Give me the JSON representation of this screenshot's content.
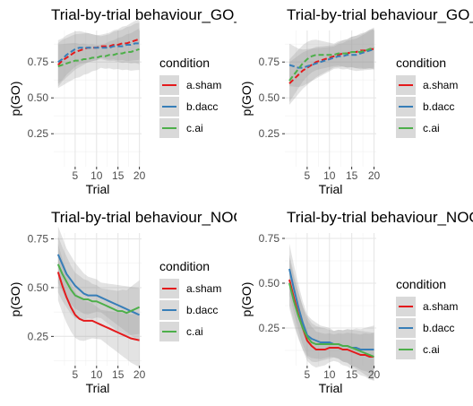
{
  "chart_data": [
    {
      "type": "line",
      "title": "Trial-by-trial behaviour_GO_ChosenHigh",
      "xlabel": "Trial",
      "ylabel": "p(GO)",
      "xlim": [
        0,
        20.5
      ],
      "ylim": [
        0.02,
        0.97
      ],
      "xticks": [
        5,
        10,
        15,
        20
      ],
      "yticks": [
        0.25,
        0.5,
        0.75
      ],
      "grid": true,
      "legend": "right",
      "legend_title": "condition",
      "series": [
        {
          "name": "a.sham",
          "color": "#e41a1c",
          "x": [
            1,
            2,
            3,
            4,
            5,
            6,
            7,
            8,
            9,
            10,
            11,
            12,
            13,
            14,
            15,
            16,
            17,
            18,
            19,
            20
          ],
          "y": [
            0.73,
            0.76,
            0.78,
            0.8,
            0.82,
            0.83,
            0.84,
            0.85,
            0.85,
            0.85,
            0.86,
            0.86,
            0.86,
            0.87,
            0.87,
            0.88,
            0.88,
            0.89,
            0.9,
            0.91
          ]
        },
        {
          "name": "b.dacc",
          "color": "#377eb8",
          "x": [
            1,
            2,
            3,
            4,
            5,
            6,
            7,
            8,
            9,
            10,
            11,
            12,
            13,
            14,
            15,
            16,
            17,
            18,
            19,
            20
          ],
          "y": [
            0.75,
            0.77,
            0.8,
            0.82,
            0.84,
            0.85,
            0.85,
            0.85,
            0.85,
            0.85,
            0.85,
            0.85,
            0.85,
            0.86,
            0.86,
            0.86,
            0.87,
            0.87,
            0.88,
            0.88
          ]
        },
        {
          "name": "c.ai",
          "color": "#4daf4a",
          "x": [
            1,
            2,
            3,
            4,
            5,
            6,
            7,
            8,
            9,
            10,
            11,
            12,
            13,
            14,
            15,
            16,
            17,
            18,
            19,
            20
          ],
          "y": [
            0.72,
            0.73,
            0.74,
            0.75,
            0.76,
            0.76,
            0.77,
            0.77,
            0.78,
            0.78,
            0.79,
            0.79,
            0.8,
            0.8,
            0.81,
            0.81,
            0.82,
            0.82,
            0.83,
            0.84
          ]
        }
      ]
    },
    {
      "type": "line",
      "title": "Trial-by-trial behaviour_GO_ChosenLow",
      "xlabel": "Trial",
      "ylabel": "p(GO)",
      "xlim": [
        0,
        20.5
      ],
      "ylim": [
        0.02,
        0.97
      ],
      "xticks": [
        5,
        10,
        15,
        20
      ],
      "yticks": [
        0.25,
        0.5,
        0.75
      ],
      "grid": true,
      "legend": "right",
      "legend_title": "condition",
      "series": [
        {
          "name": "a.sham",
          "color": "#e41a1c",
          "x": [
            1,
            2,
            3,
            4,
            5,
            6,
            7,
            8,
            9,
            10,
            11,
            12,
            13,
            14,
            15,
            16,
            17,
            18,
            19,
            20
          ],
          "y": [
            0.6,
            0.63,
            0.66,
            0.69,
            0.71,
            0.73,
            0.75,
            0.76,
            0.77,
            0.78,
            0.79,
            0.8,
            0.81,
            0.81,
            0.82,
            0.82,
            0.83,
            0.83,
            0.84,
            0.84
          ]
        },
        {
          "name": "b.dacc",
          "color": "#377eb8",
          "x": [
            1,
            2,
            3,
            4,
            5,
            6,
            7,
            8,
            9,
            10,
            11,
            12,
            13,
            14,
            15,
            16,
            17,
            18,
            19,
            20
          ],
          "y": [
            0.73,
            0.72,
            0.71,
            0.71,
            0.72,
            0.73,
            0.74,
            0.75,
            0.76,
            0.77,
            0.78,
            0.79,
            0.79,
            0.8,
            0.8,
            0.8,
            0.81,
            0.82,
            0.83,
            0.84
          ]
        },
        {
          "name": "c.ai",
          "color": "#4daf4a",
          "x": [
            1,
            2,
            3,
            4,
            5,
            6,
            7,
            8,
            9,
            10,
            11,
            12,
            13,
            14,
            15,
            16,
            17,
            18,
            19,
            20
          ],
          "y": [
            0.62,
            0.66,
            0.7,
            0.74,
            0.77,
            0.79,
            0.8,
            0.8,
            0.8,
            0.8,
            0.8,
            0.81,
            0.81,
            0.81,
            0.82,
            0.82,
            0.82,
            0.83,
            0.84,
            0.85
          ]
        }
      ]
    },
    {
      "type": "line",
      "title": "Trial-by-trial behaviour_NOGO_ChosenHigh",
      "xlabel": "Trial",
      "ylabel": "p(GO)",
      "xlim": [
        0,
        20.5
      ],
      "ylim": [
        0.1,
        0.78
      ],
      "xticks": [
        5,
        10,
        15,
        20
      ],
      "yticks": [
        0.25,
        0.5,
        0.75
      ],
      "grid": true,
      "legend": "right",
      "legend_title": "condition",
      "series": [
        {
          "name": "a.sham",
          "color": "#e41a1c",
          "x": [
            1,
            2,
            3,
            4,
            5,
            6,
            7,
            8,
            9,
            10,
            11,
            12,
            13,
            14,
            15,
            16,
            17,
            18,
            19,
            20
          ],
          "y": [
            0.58,
            0.51,
            0.45,
            0.4,
            0.36,
            0.34,
            0.33,
            0.33,
            0.33,
            0.32,
            0.31,
            0.3,
            0.29,
            0.28,
            0.27,
            0.26,
            0.25,
            0.24,
            0.235,
            0.23
          ]
        },
        {
          "name": "b.dacc",
          "color": "#377eb8",
          "x": [
            1,
            2,
            3,
            4,
            5,
            6,
            7,
            8,
            9,
            10,
            11,
            12,
            13,
            14,
            15,
            16,
            17,
            18,
            19,
            20
          ],
          "y": [
            0.67,
            0.62,
            0.57,
            0.54,
            0.51,
            0.49,
            0.47,
            0.46,
            0.46,
            0.46,
            0.45,
            0.44,
            0.43,
            0.42,
            0.41,
            0.4,
            0.39,
            0.38,
            0.37,
            0.36
          ]
        },
        {
          "name": "c.ai",
          "color": "#4daf4a",
          "x": [
            1,
            2,
            3,
            4,
            5,
            6,
            7,
            8,
            9,
            10,
            11,
            12,
            13,
            14,
            15,
            16,
            17,
            18,
            19,
            20
          ],
          "y": [
            0.62,
            0.57,
            0.53,
            0.49,
            0.46,
            0.45,
            0.44,
            0.44,
            0.43,
            0.43,
            0.42,
            0.41,
            0.4,
            0.39,
            0.38,
            0.38,
            0.37,
            0.38,
            0.39,
            0.4
          ]
        }
      ]
    },
    {
      "type": "line",
      "title": "Trial-by-trial behaviour_NOGO_ChosenLow",
      "xlabel": "Trial",
      "ylabel": "p(GO)",
      "xlim": [
        0,
        20.5
      ],
      "ylim": [
        0.04,
        0.78
      ],
      "xticks": [
        5,
        10,
        15,
        20
      ],
      "yticks": [
        0.25,
        0.5,
        0.75
      ],
      "grid": true,
      "legend": "right",
      "legend_title": "condition",
      "series": [
        {
          "name": "a.sham",
          "color": "#e41a1c",
          "x": [
            1,
            2,
            3,
            4,
            5,
            6,
            7,
            8,
            9,
            10,
            11,
            12,
            13,
            14,
            15,
            16,
            17,
            18,
            19,
            20
          ],
          "y": [
            0.52,
            0.42,
            0.33,
            0.25,
            0.18,
            0.15,
            0.13,
            0.13,
            0.13,
            0.14,
            0.14,
            0.14,
            0.13,
            0.13,
            0.12,
            0.11,
            0.1,
            0.1,
            0.09,
            0.09
          ]
        },
        {
          "name": "b.dacc",
          "color": "#377eb8",
          "x": [
            1,
            2,
            3,
            4,
            5,
            6,
            7,
            8,
            9,
            10,
            11,
            12,
            13,
            14,
            15,
            16,
            17,
            18,
            19,
            20
          ],
          "y": [
            0.58,
            0.47,
            0.37,
            0.28,
            0.21,
            0.19,
            0.18,
            0.17,
            0.17,
            0.17,
            0.16,
            0.16,
            0.15,
            0.15,
            0.14,
            0.14,
            0.13,
            0.13,
            0.13,
            0.13
          ]
        },
        {
          "name": "c.ai",
          "color": "#4daf4a",
          "x": [
            1,
            2,
            3,
            4,
            5,
            6,
            7,
            8,
            9,
            10,
            11,
            12,
            13,
            14,
            15,
            16,
            17,
            18,
            19,
            20
          ],
          "y": [
            0.5,
            0.4,
            0.32,
            0.25,
            0.2,
            0.17,
            0.16,
            0.16,
            0.16,
            0.16,
            0.16,
            0.16,
            0.15,
            0.15,
            0.14,
            0.13,
            0.12,
            0.11,
            0.1,
            0.09
          ]
        }
      ]
    }
  ]
}
